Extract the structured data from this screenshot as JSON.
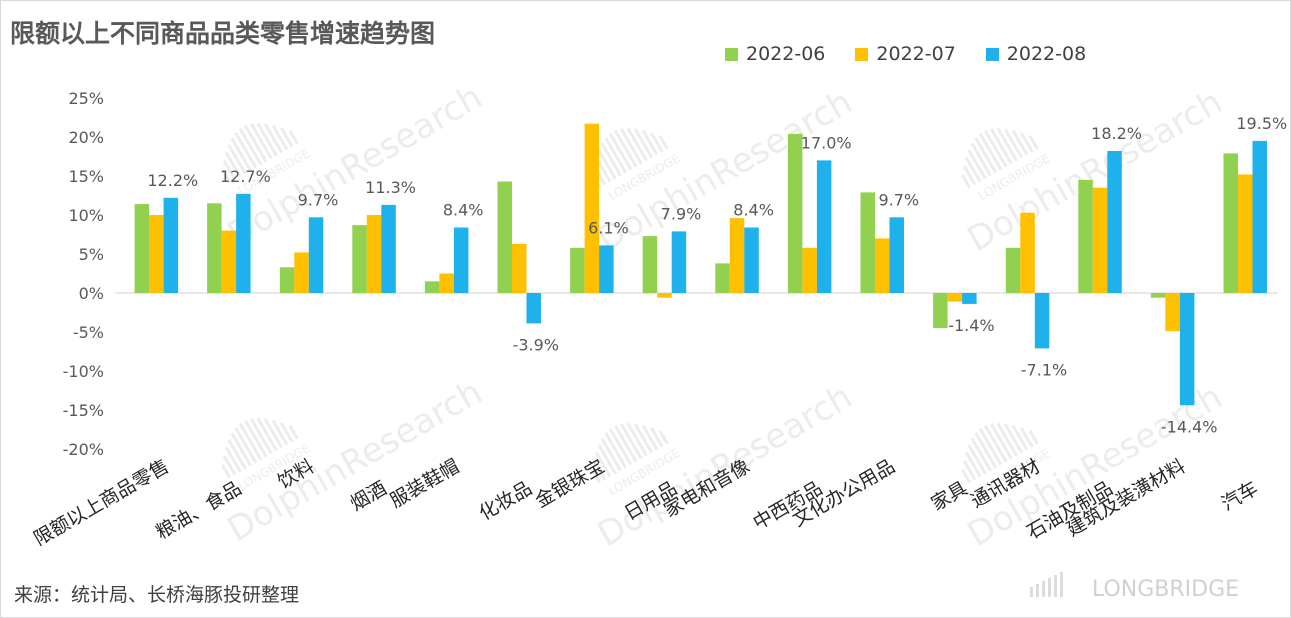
{
  "title": "限额以上不同商品品类零售增速趋势图",
  "source": "来源：统计局、长桥海豚投研整理",
  "watermark": {
    "brand": "DolphinResearch",
    "small": "LONGBRIDGE",
    "corner_logo": "LONGBRIDGE"
  },
  "colors": {
    "2022-06": "#92d050",
    "2022-07": "#ffc000",
    "2022-08": "#1fb1ec",
    "text": "#595959",
    "axis": "#d9d9d9"
  },
  "chart_data": {
    "type": "bar",
    "title": "限额以上不同商品品类零售增速趋势图",
    "xlabel": "",
    "ylabel": "",
    "ylim": [
      -20,
      25
    ],
    "yticks": [
      25,
      20,
      15,
      10,
      5,
      0,
      -5,
      -10,
      -15,
      -20
    ],
    "ytick_labels": [
      "25%",
      "20%",
      "15%",
      "10%",
      "5%",
      "0%",
      "-5%",
      "-10%",
      "-15%",
      "-20%"
    ],
    "grid": false,
    "legend_position": "top-right",
    "categories": [
      "限额以上商品零售",
      "粮油、食品",
      "饮料",
      "烟酒",
      "服装鞋帽",
      "化妆品",
      "金银珠宝",
      "日用品",
      "家电和音像",
      "中西药品",
      "文化办公用品",
      "家具",
      "通讯器材",
      "石油及制品",
      "建筑及装潢材料",
      "汽车"
    ],
    "series": [
      {
        "name": "2022-06",
        "values": [
          11.4,
          11.5,
          3.3,
          8.7,
          1.5,
          14.3,
          5.8,
          7.3,
          3.8,
          20.4,
          12.9,
          -4.5,
          5.8,
          14.5,
          -0.6,
          17.9
        ]
      },
      {
        "name": "2022-07",
        "values": [
          10.0,
          8.0,
          5.2,
          10.0,
          2.5,
          6.3,
          21.7,
          -0.6,
          9.6,
          5.8,
          7.0,
          -1.1,
          10.3,
          13.5,
          -4.9,
          15.2
        ]
      },
      {
        "name": "2022-08",
        "values": [
          12.2,
          12.7,
          9.7,
          11.3,
          8.4,
          -3.9,
          6.1,
          7.9,
          8.4,
          17.0,
          9.7,
          -1.4,
          -7.1,
          18.2,
          -14.4,
          19.5
        ]
      }
    ],
    "data_labels": [
      "12.2%",
      "12.7%",
      "9.7%",
      "11.3%",
      "8.4%",
      "-3.9%",
      "6.1%",
      "7.9%",
      "8.4%",
      "17.0%",
      "9.7%",
      "-1.4%",
      "-7.1%",
      "18.2%",
      "-14.4%",
      "19.5%"
    ]
  }
}
